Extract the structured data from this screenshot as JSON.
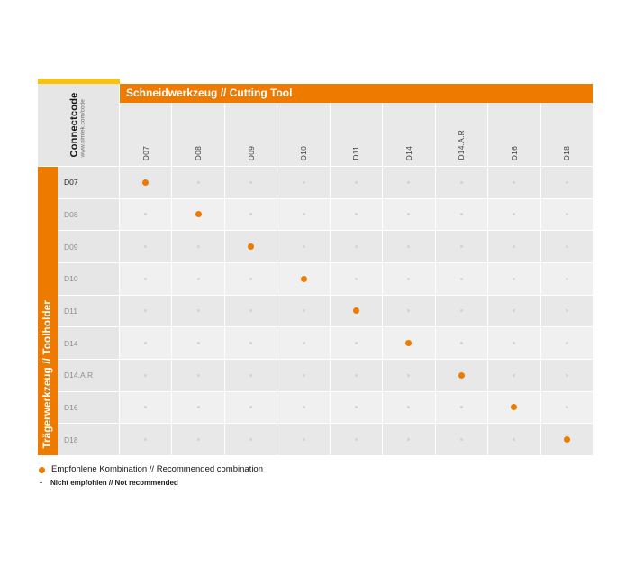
{
  "brand": {
    "name": "Connectcode",
    "url": "www.simtek.com/code"
  },
  "column_group_title": "Schneidwerkzeug // Cutting Tool",
  "row_group_title": "Trägerwerkzeug // Toolholder",
  "tools": [
    "D07",
    "D08",
    "D09",
    "D10",
    "D11",
    "D14",
    "D14.A.R",
    "D16",
    "D18"
  ],
  "legend": {
    "recommended": "Empfohlene Kombination // Recommended combination",
    "not_marker": "-",
    "not_recommended": "Nicht empfohlen // Not recommended"
  },
  "colors": {
    "orange": "#ee7a00",
    "yellow": "#fdc300",
    "grid_dark": "#e8e8e8",
    "grid_light": "#f0f0f0",
    "label_bg": "#e6e6e6",
    "header_bg": "#e9e9e9",
    "no_dot": "#d4d4d4"
  },
  "chart_data": {
    "type": "heatmap",
    "x_axis_label": "Schneidwerkzeug // Cutting Tool",
    "y_axis_label": "Trägerwerkzeug // Toolholder",
    "columns": [
      "D07",
      "D08",
      "D09",
      "D10",
      "D11",
      "D14",
      "D14.A.R",
      "D16",
      "D18"
    ],
    "rows": [
      "D07",
      "D08",
      "D09",
      "D10",
      "D11",
      "D14",
      "D14.A.R",
      "D16",
      "D18"
    ],
    "matrix": [
      [
        1,
        0,
        0,
        0,
        0,
        0,
        0,
        0,
        0
      ],
      [
        0,
        1,
        0,
        0,
        0,
        0,
        0,
        0,
        0
      ],
      [
        0,
        0,
        1,
        0,
        0,
        0,
        0,
        0,
        0
      ],
      [
        0,
        0,
        0,
        1,
        0,
        0,
        0,
        0,
        0
      ],
      [
        0,
        0,
        0,
        0,
        1,
        0,
        0,
        0,
        0
      ],
      [
        0,
        0,
        0,
        0,
        0,
        1,
        0,
        0,
        0
      ],
      [
        0,
        0,
        0,
        0,
        0,
        0,
        1,
        0,
        0
      ],
      [
        0,
        0,
        0,
        0,
        0,
        0,
        0,
        1,
        0
      ],
      [
        0,
        0,
        0,
        0,
        0,
        0,
        0,
        0,
        1
      ]
    ],
    "cell_values_meaning": {
      "1": "Empfohlene Kombination // Recommended combination",
      "0": "Nicht empfohlen // Not recommended"
    },
    "legend_position": "bottom-left"
  }
}
